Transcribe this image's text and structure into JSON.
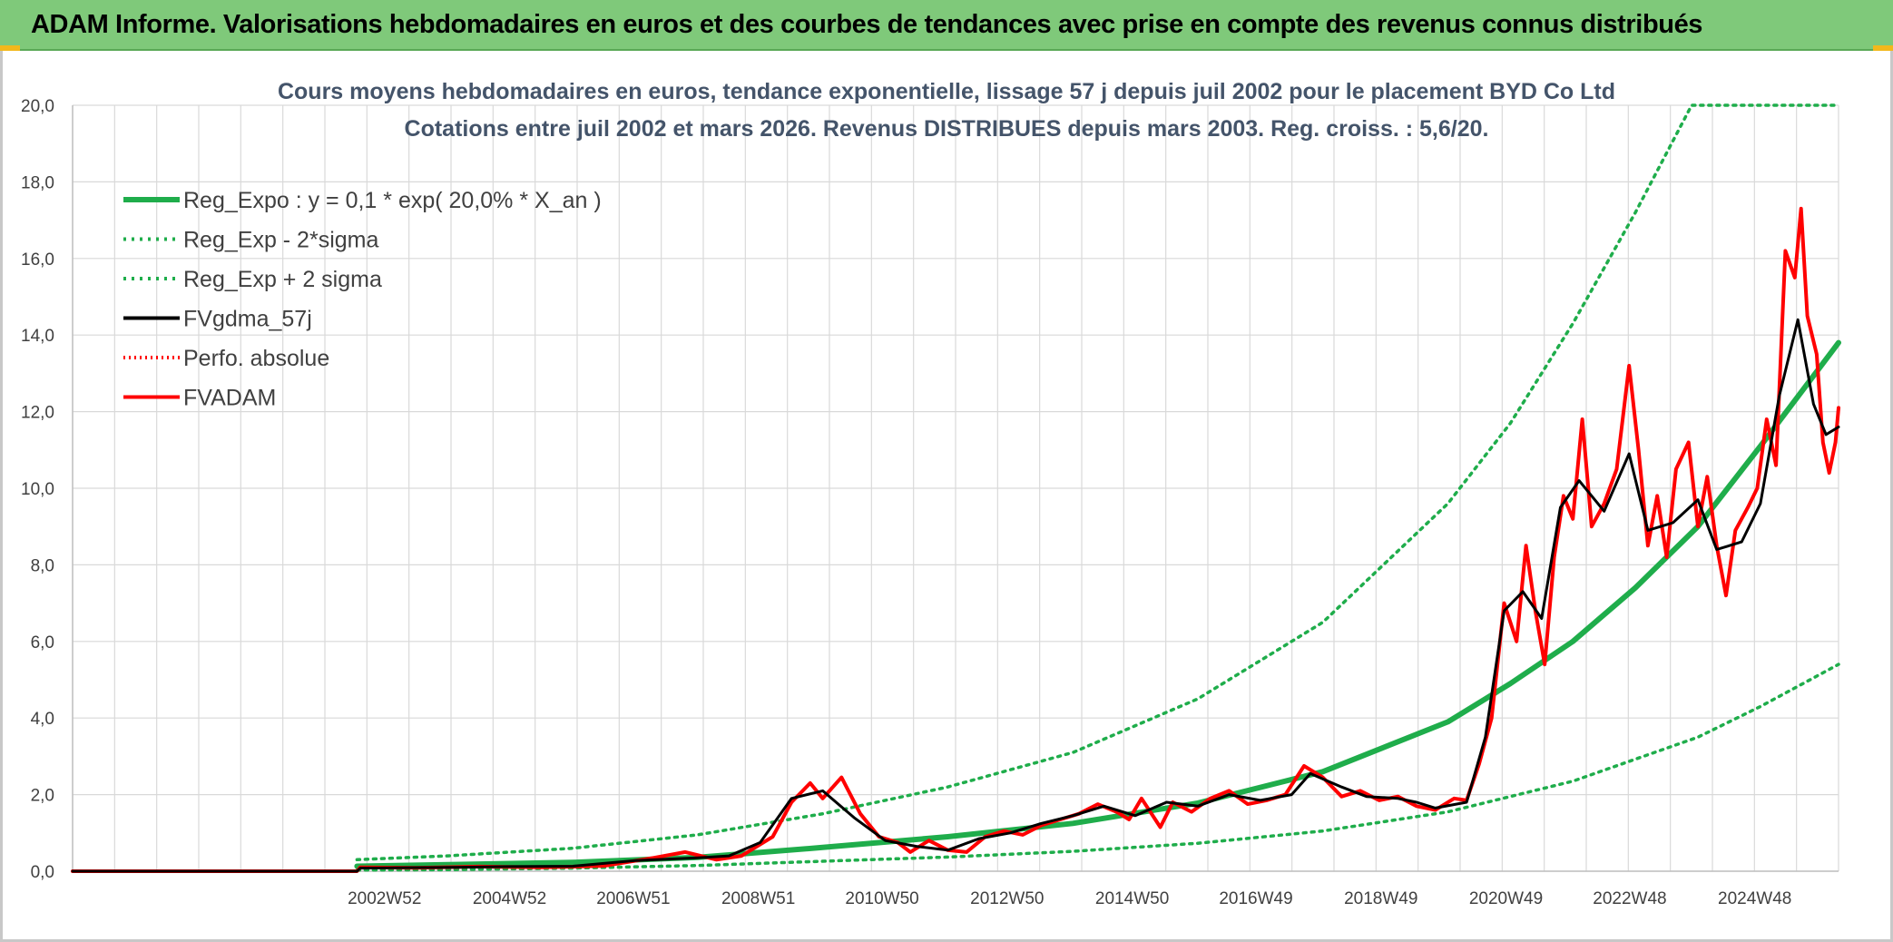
{
  "header": {
    "title": "ADAM Informe. Valorisations hebdomadaires en euros et des courbes de tendances avec prise en compte des revenus connus distribués"
  },
  "colors": {
    "banner": "#7fc97a",
    "reg_expo": "#1fad4b",
    "sigma": "#1fad4b",
    "fvgdma": "#000000",
    "perfo": "#ff0000",
    "fvadam": "#ff0000",
    "grid": "#d9d9d9"
  },
  "chart_data": {
    "type": "line",
    "title_lines": [
      "Cours moyens hebdomadaires en euros, tendance exponentielle, lissage 57 j depuis juil 2002 pour le placement BYD Co Ltd",
      "Cotations entre juil 2002 et mars 2026. Revenus DISTRIBUES depuis mars 2003. Reg. croiss. : 5,6/20."
    ],
    "xlabel": "",
    "ylabel": "",
    "x_range": [
      1998.0,
      2026.25
    ],
    "ylim": [
      0,
      20
    ],
    "y_ticks": [
      "0,0",
      "2,0",
      "4,0",
      "6,0",
      "8,0",
      "10,0",
      "12,0",
      "14,0",
      "16,0",
      "18,0",
      "20,0"
    ],
    "x_ticks": [
      {
        "label": "2002W52",
        "x": 2002.99
      },
      {
        "label": "2004W52",
        "x": 2004.99
      },
      {
        "label": "2006W51",
        "x": 2006.97
      },
      {
        "label": "2008W51",
        "x": 2008.97
      },
      {
        "label": "2010W50",
        "x": 2010.95
      },
      {
        "label": "2012W50",
        "x": 2012.95
      },
      {
        "label": "2014W50",
        "x": 2014.95
      },
      {
        "label": "2016W49",
        "x": 2016.93
      },
      {
        "label": "2018W49",
        "x": 2018.93
      },
      {
        "label": "2020W49",
        "x": 2020.93
      },
      {
        "label": "2022W48",
        "x": 2022.91
      },
      {
        "label": "2024W48",
        "x": 2024.91
      }
    ],
    "grid": true,
    "legend_position": "top-left",
    "series": [
      {
        "name": "Reg_Expo : y = 0,1 * exp( 20,0% *  X_an )",
        "style": "thick-solid",
        "points": [
          [
            2002.55,
            0.13
          ],
          [
            2004,
            0.17
          ],
          [
            2006,
            0.23
          ],
          [
            2008,
            0.36
          ],
          [
            2010,
            0.62
          ],
          [
            2012,
            0.9
          ],
          [
            2014,
            1.25
          ],
          [
            2016,
            1.78
          ],
          [
            2018,
            2.6
          ],
          [
            2020,
            3.9
          ],
          [
            2021,
            4.9
          ],
          [
            2022,
            6.0
          ],
          [
            2023,
            7.4
          ],
          [
            2024,
            9.0
          ],
          [
            2025,
            11.1
          ],
          [
            2026.25,
            13.8
          ]
        ]
      },
      {
        "name": "Reg_Exp - 2*sigma",
        "style": "dotted",
        "points": [
          [
            2002.55,
            0.03
          ],
          [
            2004,
            0.04
          ],
          [
            2006,
            0.08
          ],
          [
            2008,
            0.15
          ],
          [
            2010,
            0.26
          ],
          [
            2012,
            0.37
          ],
          [
            2014,
            0.52
          ],
          [
            2016,
            0.73
          ],
          [
            2018,
            1.05
          ],
          [
            2020,
            1.55
          ],
          [
            2022,
            2.35
          ],
          [
            2024,
            3.5
          ],
          [
            2025,
            4.3
          ],
          [
            2026.25,
            5.4
          ]
        ]
      },
      {
        "name": "Reg_Exp + 2 sigma",
        "style": "dotted",
        "points": [
          [
            2002.55,
            0.3
          ],
          [
            2004,
            0.4
          ],
          [
            2006,
            0.6
          ],
          [
            2008,
            0.95
          ],
          [
            2010,
            1.5
          ],
          [
            2012,
            2.2
          ],
          [
            2014,
            3.1
          ],
          [
            2016,
            4.5
          ],
          [
            2018,
            6.5
          ],
          [
            2020,
            9.6
          ],
          [
            2021,
            11.7
          ],
          [
            2022,
            14.3
          ],
          [
            2023,
            17.2
          ],
          [
            2023.9,
            20
          ],
          [
            2026.25,
            20
          ]
        ]
      },
      {
        "name": "FVgdma_57j",
        "style": "solid",
        "points": [
          [
            1998,
            0
          ],
          [
            2002.55,
            0
          ],
          [
            2002.6,
            0.08
          ],
          [
            2004,
            0.1
          ],
          [
            2005,
            0.12
          ],
          [
            2006,
            0.13
          ],
          [
            2007,
            0.28
          ],
          [
            2008,
            0.35
          ],
          [
            2008.5,
            0.4
          ],
          [
            2009,
            0.75
          ],
          [
            2009.5,
            1.9
          ],
          [
            2010,
            2.1
          ],
          [
            2010.5,
            1.4
          ],
          [
            2011,
            0.8
          ],
          [
            2011.5,
            0.65
          ],
          [
            2012,
            0.55
          ],
          [
            2012.5,
            0.85
          ],
          [
            2013,
            1.0
          ],
          [
            2013.5,
            1.25
          ],
          [
            2014,
            1.45
          ],
          [
            2014.5,
            1.7
          ],
          [
            2015,
            1.45
          ],
          [
            2015.5,
            1.8
          ],
          [
            2016,
            1.7
          ],
          [
            2016.5,
            2.0
          ],
          [
            2017,
            1.85
          ],
          [
            2017.5,
            2.0
          ],
          [
            2017.8,
            2.55
          ],
          [
            2018.3,
            2.2
          ],
          [
            2018.7,
            1.95
          ],
          [
            2019.2,
            1.9
          ],
          [
            2019.5,
            1.8
          ],
          [
            2019.8,
            1.65
          ],
          [
            2020.3,
            1.8
          ],
          [
            2020.6,
            3.5
          ],
          [
            2020.9,
            6.8
          ],
          [
            2021.2,
            7.3
          ],
          [
            2021.5,
            6.6
          ],
          [
            2021.8,
            9.5
          ],
          [
            2022.1,
            10.2
          ],
          [
            2022.5,
            9.4
          ],
          [
            2022.9,
            10.9
          ],
          [
            2023.2,
            8.9
          ],
          [
            2023.6,
            9.1
          ],
          [
            2024,
            9.7
          ],
          [
            2024.3,
            8.4
          ],
          [
            2024.7,
            8.6
          ],
          [
            2025,
            9.6
          ],
          [
            2025.3,
            12.4
          ],
          [
            2025.6,
            14.4
          ],
          [
            2025.85,
            12.2
          ],
          [
            2026.05,
            11.4
          ],
          [
            2026.25,
            11.6
          ]
        ]
      },
      {
        "name": "Perfo. absolue",
        "style": "dotted",
        "points": [
          [
            1998,
            0.02
          ],
          [
            2002.55,
            0.02
          ]
        ]
      },
      {
        "name": "FVADAM",
        "style": "thick-solid",
        "points": [
          [
            1998,
            0
          ],
          [
            2002.55,
            0
          ],
          [
            2002.6,
            0.1
          ],
          [
            2003.5,
            0.09
          ],
          [
            2004.5,
            0.12
          ],
          [
            2005.5,
            0.1
          ],
          [
            2006.5,
            0.14
          ],
          [
            2007.3,
            0.35
          ],
          [
            2007.8,
            0.5
          ],
          [
            2008.3,
            0.3
          ],
          [
            2008.7,
            0.4
          ],
          [
            2009.2,
            0.9
          ],
          [
            2009.5,
            1.8
          ],
          [
            2009.8,
            2.3
          ],
          [
            2010.0,
            1.9
          ],
          [
            2010.3,
            2.45
          ],
          [
            2010.6,
            1.5
          ],
          [
            2010.9,
            0.9
          ],
          [
            2011.2,
            0.75
          ],
          [
            2011.4,
            0.5
          ],
          [
            2011.7,
            0.8
          ],
          [
            2012.0,
            0.55
          ],
          [
            2012.3,
            0.5
          ],
          [
            2012.6,
            0.9
          ],
          [
            2012.9,
            1.05
          ],
          [
            2013.2,
            0.95
          ],
          [
            2013.5,
            1.2
          ],
          [
            2013.8,
            1.35
          ],
          [
            2014.1,
            1.5
          ],
          [
            2014.4,
            1.75
          ],
          [
            2014.7,
            1.55
          ],
          [
            2014.9,
            1.35
          ],
          [
            2015.1,
            1.9
          ],
          [
            2015.4,
            1.15
          ],
          [
            2015.6,
            1.8
          ],
          [
            2015.9,
            1.55
          ],
          [
            2016.2,
            1.9
          ],
          [
            2016.5,
            2.1
          ],
          [
            2016.8,
            1.75
          ],
          [
            2017.1,
            1.85
          ],
          [
            2017.4,
            2.0
          ],
          [
            2017.7,
            2.75
          ],
          [
            2018.0,
            2.45
          ],
          [
            2018.3,
            1.95
          ],
          [
            2018.6,
            2.1
          ],
          [
            2018.9,
            1.85
          ],
          [
            2019.2,
            1.95
          ],
          [
            2019.5,
            1.7
          ],
          [
            2019.8,
            1.6
          ],
          [
            2020.1,
            1.9
          ],
          [
            2020.3,
            1.85
          ],
          [
            2020.5,
            2.8
          ],
          [
            2020.7,
            4.0
          ],
          [
            2020.9,
            7.0
          ],
          [
            2021.1,
            6.0
          ],
          [
            2021.25,
            8.5
          ],
          [
            2021.4,
            6.8
          ],
          [
            2021.55,
            5.4
          ],
          [
            2021.7,
            8.2
          ],
          [
            2021.85,
            9.8
          ],
          [
            2022.0,
            9.2
          ],
          [
            2022.15,
            11.8
          ],
          [
            2022.3,
            9.0
          ],
          [
            2022.5,
            9.6
          ],
          [
            2022.7,
            10.5
          ],
          [
            2022.9,
            13.2
          ],
          [
            2023.05,
            11.0
          ],
          [
            2023.2,
            8.5
          ],
          [
            2023.35,
            9.8
          ],
          [
            2023.5,
            8.2
          ],
          [
            2023.65,
            10.5
          ],
          [
            2023.85,
            11.2
          ],
          [
            2024.0,
            9.0
          ],
          [
            2024.15,
            10.3
          ],
          [
            2024.3,
            8.5
          ],
          [
            2024.45,
            7.2
          ],
          [
            2024.6,
            8.9
          ],
          [
            2024.8,
            9.5
          ],
          [
            2024.95,
            10.0
          ],
          [
            2025.1,
            11.8
          ],
          [
            2025.25,
            10.6
          ],
          [
            2025.4,
            16.2
          ],
          [
            2025.55,
            15.5
          ],
          [
            2025.65,
            17.3
          ],
          [
            2025.75,
            14.5
          ],
          [
            2025.9,
            13.5
          ],
          [
            2026.0,
            11.2
          ],
          [
            2026.1,
            10.4
          ],
          [
            2026.2,
            11.2
          ],
          [
            2026.25,
            12.1
          ]
        ]
      }
    ]
  }
}
